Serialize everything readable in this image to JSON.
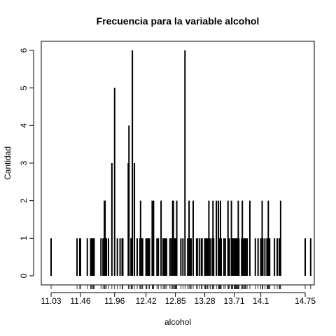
{
  "chart_data": {
    "type": "bar",
    "title": "Frecuencia para la variable alcohol",
    "xlabel": "alcohol",
    "ylabel": "Cantidad",
    "x_ticks": [
      "11.03",
      "11.46",
      "11.96",
      "12.42",
      "12.85",
      "13.28",
      "13.71",
      "14.1",
      "14.75"
    ],
    "y_ticks": [
      "0",
      "1",
      "2",
      "3",
      "4",
      "5",
      "6"
    ],
    "ylim": [
      0,
      6
    ],
    "xlim": [
      11.03,
      14.75
    ],
    "grid": false,
    "legend": "none",
    "x": [
      11.03,
      11.41,
      11.45,
      11.46,
      11.56,
      11.61,
      11.62,
      11.64,
      11.65,
      11.66,
      11.76,
      11.79,
      11.81,
      11.82,
      11.84,
      11.87,
      11.92,
      11.96,
      12.0,
      12.04,
      12.07,
      12.08,
      12.16,
      12.17,
      12.2,
      12.21,
      12.22,
      12.25,
      12.29,
      12.33,
      12.34,
      12.36,
      12.37,
      12.42,
      12.43,
      12.45,
      12.47,
      12.51,
      12.52,
      12.53,
      12.58,
      12.6,
      12.64,
      12.67,
      12.69,
      12.7,
      12.72,
      12.77,
      12.79,
      12.81,
      12.82,
      12.84,
      12.85,
      12.86,
      12.87,
      12.93,
      12.96,
      12.99,
      13.03,
      13.05,
      13.07,
      13.08,
      13.11,
      13.16,
      13.17,
      13.2,
      13.23,
      13.24,
      13.28,
      13.29,
      13.3,
      13.32,
      13.34,
      13.36,
      13.39,
      13.4,
      13.41,
      13.45,
      13.48,
      13.49,
      13.5,
      13.51,
      13.52,
      13.56,
      13.58,
      13.62,
      13.63,
      13.64,
      13.67,
      13.68,
      13.69,
      13.71,
      13.72,
      13.73,
      13.74,
      13.75,
      13.76,
      13.77,
      13.78,
      13.82,
      13.83,
      13.84,
      13.86,
      13.87,
      13.88,
      13.9,
      13.94,
      14.02,
      14.06,
      14.1,
      14.12,
      14.13,
      14.16,
      14.19,
      14.2,
      14.21,
      14.22,
      14.23,
      14.3,
      14.34,
      14.37,
      14.38,
      14.39,
      14.75,
      14.83
    ],
    "values": [
      1,
      1,
      1,
      1,
      1,
      1,
      1,
      1,
      1,
      1,
      1,
      1,
      2,
      2,
      1,
      1,
      3,
      5,
      1,
      1,
      1,
      1,
      3,
      4,
      1,
      1,
      6,
      3,
      1,
      1,
      2,
      1,
      1,
      1,
      1,
      1,
      1,
      2,
      1,
      2,
      1,
      1,
      2,
      1,
      1,
      1,
      1,
      1,
      1,
      2,
      2,
      1,
      1,
      1,
      2,
      1,
      1,
      6,
      1,
      2,
      1,
      1,
      2,
      1,
      1,
      1,
      1,
      1,
      1,
      1,
      1,
      1,
      2,
      1,
      1,
      2,
      1,
      2,
      2,
      1,
      1,
      2,
      1,
      1,
      1,
      2,
      1,
      1,
      2,
      1,
      1,
      1,
      1,
      1,
      1,
      1,
      1,
      2,
      1,
      1,
      2,
      1,
      1,
      1,
      1,
      1,
      2,
      1,
      1,
      1,
      2,
      1,
      1,
      1,
      1,
      2,
      1,
      1,
      1,
      1,
      1,
      1,
      2,
      1,
      1
    ]
  }
}
